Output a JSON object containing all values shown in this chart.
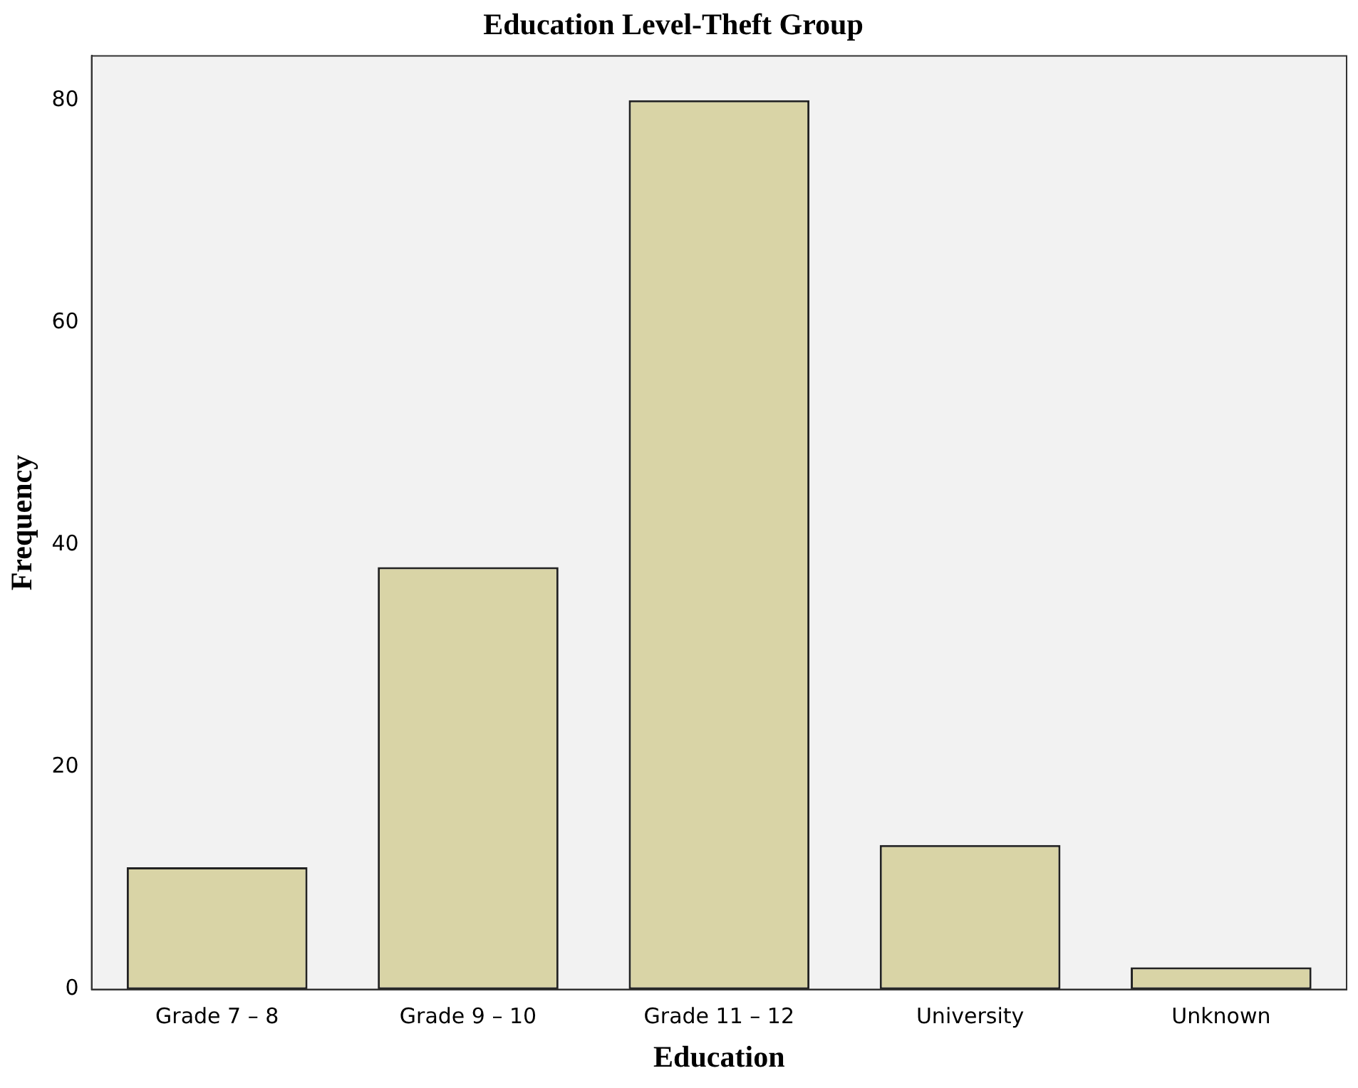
{
  "chart_data": {
    "type": "bar",
    "title": "Education Level-Theft Group",
    "xlabel": "Education",
    "ylabel": "Frequency",
    "categories": [
      "Grade 7 – 8",
      "Grade 9 – 10",
      "Grade 11 – 12",
      "University",
      "Unknown"
    ],
    "values": [
      11,
      38,
      80,
      13,
      2
    ],
    "color": "#d9d4a6",
    "ylim": [
      0,
      84
    ],
    "yticks": [
      0,
      20,
      40,
      60,
      80
    ],
    "grid": false,
    "legend": false
  }
}
